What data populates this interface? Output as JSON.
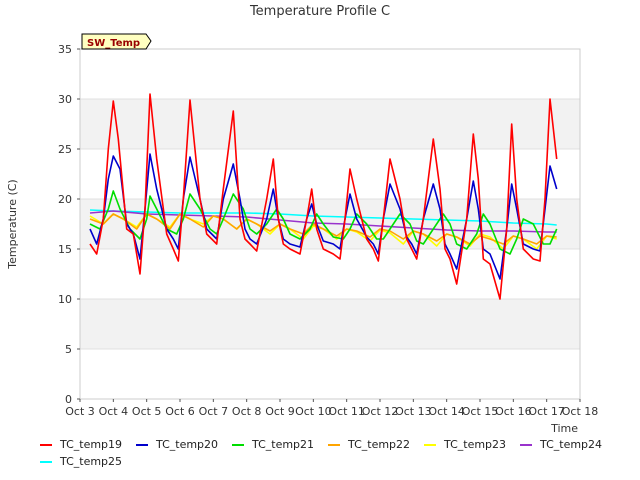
{
  "chart_data": {
    "type": "line",
    "title": "Temperature Profile C",
    "xlabel": "Time",
    "ylabel": "Temperature (C)",
    "ylim": [
      0,
      35
    ],
    "yticks": [
      0,
      5,
      10,
      15,
      20,
      25,
      30,
      35
    ],
    "xticks": [
      "Oct 3",
      "Oct 4",
      "Oct 5",
      "Oct 6",
      "Oct 7",
      "Oct 8",
      "Oct 9",
      "Oct 10",
      "Oct 11",
      "Oct 12",
      "Oct 13",
      "Oct 14",
      "Oct 15",
      "Oct 16",
      "Oct 17",
      "Oct 18"
    ],
    "xlim_days": [
      0,
      15
    ],
    "grid": "horizontal bands",
    "legend": "bottom",
    "annotation": "SW_Temp",
    "series": [
      {
        "name": "TC_temp19",
        "color": "#ff0000",
        "x": [
          0.3,
          0.5,
          0.7,
          0.85,
          1.0,
          1.15,
          1.4,
          1.6,
          1.8,
          1.95,
          2.1,
          2.3,
          2.6,
          2.8,
          2.95,
          3.1,
          3.3,
          3.6,
          3.8,
          3.95,
          4.1,
          4.3,
          4.6,
          4.8,
          4.95,
          5.1,
          5.3,
          5.6,
          5.8,
          5.95,
          6.1,
          6.3,
          6.6,
          6.8,
          6.95,
          7.1,
          7.3,
          7.6,
          7.8,
          7.95,
          8.1,
          8.3,
          8.6,
          8.8,
          8.95,
          9.1,
          9.3,
          9.6,
          9.8,
          9.95,
          10.1,
          10.3,
          10.6,
          10.8,
          10.95,
          11.1,
          11.3,
          11.6,
          11.8,
          11.95,
          12.1,
          12.3,
          12.6,
          12.8,
          12.95,
          13.1,
          13.3,
          13.6,
          13.8,
          13.95,
          14.1,
          14.3
        ],
        "y": [
          15.5,
          14.5,
          18,
          25,
          29.8,
          26,
          17,
          16.5,
          12.5,
          19,
          30.5,
          24,
          16.5,
          15,
          13.8,
          20,
          29.9,
          20,
          16.5,
          16,
          15.5,
          21,
          28.8,
          18,
          16,
          15.5,
          14.8,
          20,
          24,
          18,
          15.5,
          15,
          14.5,
          18,
          21,
          17,
          15,
          14.5,
          14,
          18,
          23,
          20,
          16,
          15,
          13.8,
          18,
          24,
          20,
          16,
          15,
          14,
          18,
          26,
          21,
          15,
          14,
          11.5,
          18,
          26.5,
          22,
          14,
          13.5,
          10,
          17,
          27.5,
          20,
          15,
          14,
          13.8,
          20,
          30,
          24
        ]
      },
      {
        "name": "TC_temp20",
        "color": "#0000cc",
        "x": [
          0.3,
          0.5,
          0.7,
          0.85,
          1.0,
          1.2,
          1.4,
          1.6,
          1.8,
          1.95,
          2.1,
          2.3,
          2.6,
          2.8,
          2.95,
          3.1,
          3.3,
          3.6,
          3.8,
          3.95,
          4.1,
          4.3,
          4.6,
          4.8,
          4.95,
          5.1,
          5.3,
          5.6,
          5.8,
          5.95,
          6.1,
          6.3,
          6.6,
          6.8,
          6.95,
          7.1,
          7.3,
          7.6,
          7.8,
          7.95,
          8.1,
          8.3,
          8.6,
          8.8,
          8.95,
          9.1,
          9.3,
          9.6,
          9.8,
          9.95,
          10.1,
          10.3,
          10.6,
          10.8,
          10.95,
          11.1,
          11.3,
          11.6,
          11.8,
          11.95,
          12.1,
          12.3,
          12.6,
          12.8,
          12.95,
          13.1,
          13.3,
          13.6,
          13.8,
          13.95,
          14.1,
          14.3
        ],
        "y": [
          17,
          15.5,
          18,
          22,
          24.3,
          23,
          17.5,
          16.5,
          14,
          19,
          24.5,
          21,
          17,
          16,
          15,
          20,
          24.2,
          20,
          17,
          16.5,
          16,
          20,
          23.5,
          20,
          17,
          16,
          15.5,
          18,
          21,
          18,
          16,
          15.5,
          15.2,
          18,
          19.5,
          17.5,
          15.8,
          15.5,
          15,
          18,
          20.5,
          18,
          16.2,
          15.5,
          14.5,
          18,
          21.5,
          19,
          16.2,
          15.5,
          14.5,
          18,
          21.5,
          19,
          15.5,
          14.5,
          13,
          18,
          21.8,
          19,
          15,
          14.5,
          12,
          17,
          21.5,
          19,
          15.5,
          15,
          14.8,
          19,
          23.3,
          21
        ]
      },
      {
        "name": "TC_temp21",
        "color": "#00dd00",
        "x": [
          0.3,
          0.6,
          0.85,
          1.0,
          1.2,
          1.5,
          1.8,
          2.0,
          2.1,
          2.3,
          2.6,
          2.9,
          3.1,
          3.3,
          3.6,
          3.9,
          4.1,
          4.3,
          4.6,
          4.9,
          5.1,
          5.3,
          5.6,
          5.9,
          6.1,
          6.3,
          6.6,
          6.9,
          7.1,
          7.3,
          7.6,
          7.9,
          8.1,
          8.3,
          8.6,
          8.9,
          9.1,
          9.3,
          9.6,
          9.9,
          10.1,
          10.3,
          10.6,
          10.9,
          11.1,
          11.3,
          11.6,
          11.9,
          12.1,
          12.3,
          12.6,
          12.9,
          13.1,
          13.3,
          13.6,
          13.9,
          14.1,
          14.3
        ],
        "y": [
          17.5,
          17,
          19,
          20.8,
          19,
          17,
          16,
          18,
          20.3,
          19,
          17,
          16.5,
          18,
          20.5,
          19,
          17,
          16.5,
          18,
          20.5,
          19,
          17,
          16.5,
          17.5,
          19,
          18,
          16.5,
          16,
          17,
          18.5,
          17.5,
          16.2,
          16,
          17,
          18.5,
          17.5,
          16,
          16,
          17,
          18.5,
          17.5,
          15.8,
          15.5,
          17,
          18.5,
          17.5,
          15.5,
          15,
          16.5,
          18.5,
          17.5,
          15,
          14.5,
          16,
          18,
          17.5,
          15.5,
          15.5,
          17
        ]
      },
      {
        "name": "TC_temp22",
        "color": "#ffa500",
        "x": [
          0.3,
          0.7,
          1.0,
          1.3,
          1.7,
          2.0,
          2.3,
          2.7,
          3.0,
          3.3,
          3.7,
          4.0,
          4.3,
          4.7,
          5.0,
          5.3,
          5.7,
          6.0,
          6.3,
          6.7,
          7.0,
          7.3,
          7.7,
          8.0,
          8.3,
          8.7,
          9.0,
          9.3,
          9.7,
          10.0,
          10.3,
          10.7,
          11.0,
          11.3,
          11.7,
          12.0,
          12.3,
          12.7,
          13.0,
          13.3,
          13.7,
          14.0,
          14.3
        ],
        "y": [
          18,
          17.5,
          18.5,
          18,
          17,
          18.5,
          18,
          17,
          18.5,
          18,
          17.2,
          18.3,
          18,
          17,
          18,
          17.5,
          16.8,
          17.5,
          17,
          16.5,
          17.5,
          17,
          16.3,
          17,
          16.8,
          16.2,
          17,
          16.8,
          16,
          16.8,
          16.5,
          15.8,
          16.5,
          16.2,
          15.5,
          16.3,
          16,
          15.5,
          16.3,
          16,
          15.5,
          16.3,
          16.2
        ]
      },
      {
        "name": "TC_temp23",
        "color": "#ffff00",
        "x": [
          0.3,
          0.7,
          1.0,
          1.3,
          1.7,
          2.0,
          2.3,
          2.7,
          3.0,
          3.3,
          3.7,
          4.0,
          4.3,
          4.7,
          5.0,
          5.3,
          5.7,
          6.0,
          6.3,
          6.7,
          7.0,
          7.3,
          7.7,
          8.0,
          8.3,
          8.7,
          9.0,
          9.3,
          9.7,
          10.0,
          10.3,
          10.7,
          11.0,
          11.3,
          11.7,
          12.0,
          12.3,
          12.7,
          13.0,
          13.3,
          13.7,
          14.0,
          14.3
        ],
        "y": [
          18.3,
          17.5,
          18.5,
          18,
          17.2,
          18.5,
          18,
          17.2,
          18.5,
          18,
          17.5,
          18.3,
          18,
          17,
          18,
          17.5,
          16.5,
          17.5,
          17,
          16,
          17.3,
          17,
          16,
          17,
          16.7,
          15.8,
          16.9,
          16.6,
          15.5,
          16.8,
          16.5,
          15.3,
          16.5,
          16.2,
          15.3,
          16.5,
          16.2,
          15,
          16.3,
          16,
          15,
          16.3,
          16
        ]
      },
      {
        "name": "TC_temp24",
        "color": "#9933cc",
        "x": [
          0.3,
          1.0,
          2.0,
          3.0,
          4.0,
          5.0,
          6.0,
          7.0,
          8.0,
          9.0,
          10.0,
          11.0,
          12.0,
          13.0,
          14.0,
          14.3
        ],
        "y": [
          18.6,
          18.8,
          18.5,
          18.4,
          18.3,
          18.2,
          17.9,
          17.6,
          17.5,
          17.3,
          17.1,
          16.9,
          16.8,
          16.8,
          16.7,
          16.7
        ]
      },
      {
        "name": "TC_temp25",
        "color": "#00ffff",
        "x": [
          0.3,
          1.0,
          2.0,
          3.0,
          4.0,
          5.0,
          6.0,
          7.0,
          8.0,
          9.0,
          10.0,
          11.0,
          12.0,
          13.0,
          14.0,
          14.3
        ],
        "y": [
          18.9,
          18.8,
          18.7,
          18.6,
          18.6,
          18.6,
          18.5,
          18.3,
          18.2,
          18.1,
          18.0,
          17.9,
          17.8,
          17.6,
          17.5,
          17.4
        ]
      }
    ]
  }
}
